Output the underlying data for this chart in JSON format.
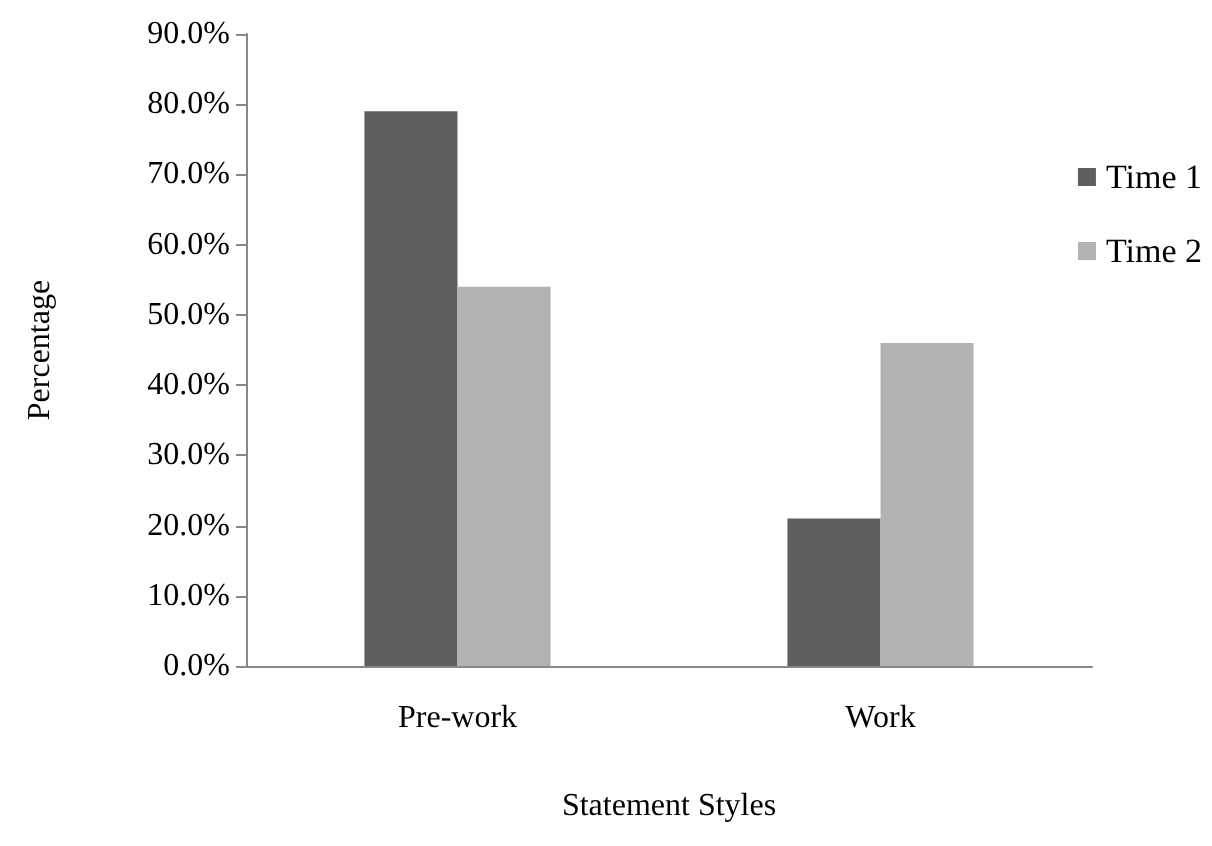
{
  "chart_data": {
    "type": "bar",
    "xlabel": "Statement Styles",
    "ylabel": "Percentage",
    "categories": [
      "Pre-work",
      "Work"
    ],
    "series": [
      {
        "name": "Time 1",
        "color": "#5f5f5f",
        "values": [
          79,
          21
        ]
      },
      {
        "name": "Time 2",
        "color": "#b3b3b3",
        "values": [
          54,
          46
        ]
      }
    ],
    "ylim": [
      0,
      90
    ],
    "yticks": [
      {
        "value": 0,
        "label": "0.0%"
      },
      {
        "value": 10,
        "label": "10.0%"
      },
      {
        "value": 20,
        "label": "20.0%"
      },
      {
        "value": 30,
        "label": "30.0%"
      },
      {
        "value": 40,
        "label": "40.0%"
      },
      {
        "value": 50,
        "label": "50.0%"
      },
      {
        "value": 60,
        "label": "60.0%"
      },
      {
        "value": 70,
        "label": "70.0%"
      },
      {
        "value": 80,
        "label": "80.0%"
      },
      {
        "value": 90,
        "label": "90.0%"
      }
    ],
    "grid": false,
    "legend": "top right"
  }
}
